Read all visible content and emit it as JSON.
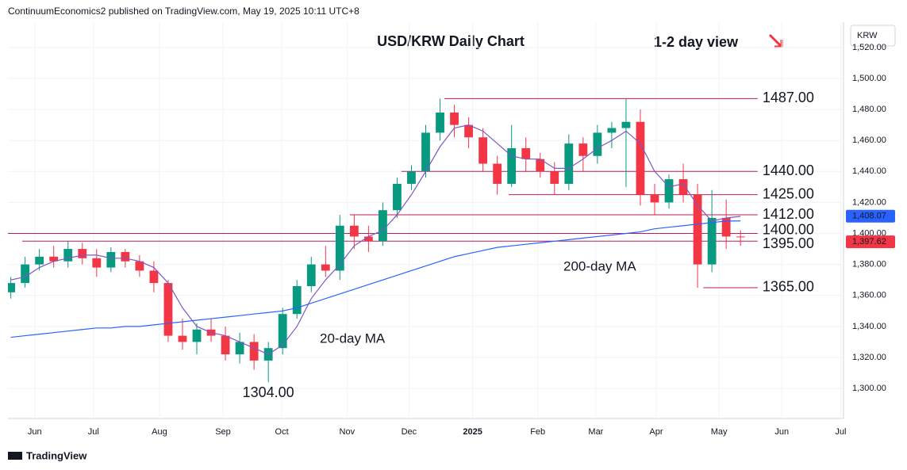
{
  "header": "ContinuumEconomics2 published on TradingView.com, May 19, 2025 10:11 UTC+8",
  "footer": "TradingView",
  "chart_data": {
    "type": "candlestick",
    "title": "USD/KRW Daily Chart",
    "subtitle": "1-2 day view",
    "currency": "KRW",
    "up_color": "#089981",
    "down_color": "#f23645",
    "candles": [
      [
        1362,
        1372,
        1358,
        1368
      ],
      [
        1368,
        1385,
        1365,
        1380
      ],
      [
        1380,
        1390,
        1376,
        1385
      ],
      [
        1385,
        1392,
        1378,
        1382
      ],
      [
        1382,
        1395,
        1378,
        1390
      ],
      [
        1390,
        1394,
        1380,
        1384
      ],
      [
        1384,
        1390,
        1372,
        1378
      ],
      [
        1378,
        1391,
        1375,
        1388
      ],
      [
        1388,
        1390,
        1378,
        1382
      ],
      [
        1382,
        1386,
        1372,
        1376
      ],
      [
        1376,
        1382,
        1362,
        1368
      ],
      [
        1368,
        1370,
        1330,
        1334
      ],
      [
        1334,
        1345,
        1325,
        1330
      ],
      [
        1330,
        1342,
        1322,
        1338
      ],
      [
        1338,
        1345,
        1330,
        1334
      ],
      [
        1334,
        1340,
        1318,
        1322
      ],
      [
        1322,
        1336,
        1316,
        1330
      ],
      [
        1330,
        1335,
        1312,
        1318
      ],
      [
        1318,
        1330,
        1304,
        1326
      ],
      [
        1326,
        1352,
        1322,
        1348
      ],
      [
        1348,
        1370,
        1345,
        1366
      ],
      [
        1366,
        1385,
        1362,
        1380
      ],
      [
        1380,
        1392,
        1372,
        1376
      ],
      [
        1376,
        1412,
        1370,
        1405
      ],
      [
        1405,
        1412,
        1390,
        1398
      ],
      [
        1398,
        1405,
        1388,
        1395
      ],
      [
        1395,
        1420,
        1392,
        1415
      ],
      [
        1415,
        1436,
        1410,
        1432
      ],
      [
        1432,
        1444,
        1428,
        1440
      ],
      [
        1440,
        1470,
        1436,
        1465
      ],
      [
        1465,
        1487,
        1460,
        1478
      ],
      [
        1478,
        1483,
        1462,
        1470
      ],
      [
        1470,
        1475,
        1455,
        1462
      ],
      [
        1462,
        1468,
        1440,
        1445
      ],
      [
        1445,
        1450,
        1425,
        1432
      ],
      [
        1432,
        1470,
        1430,
        1455
      ],
      [
        1455,
        1462,
        1440,
        1448
      ],
      [
        1448,
        1452,
        1436,
        1440
      ],
      [
        1440,
        1446,
        1425,
        1432
      ],
      [
        1432,
        1464,
        1428,
        1458
      ],
      [
        1458,
        1462,
        1440,
        1450
      ],
      [
        1450,
        1470,
        1445,
        1465
      ],
      [
        1465,
        1472,
        1455,
        1468
      ],
      [
        1468,
        1487,
        1430,
        1472
      ],
      [
        1472,
        1480,
        1418,
        1425
      ],
      [
        1425,
        1432,
        1412,
        1420
      ],
      [
        1420,
        1438,
        1416,
        1435
      ],
      [
        1435,
        1445,
        1420,
        1425
      ],
      [
        1425,
        1432,
        1365,
        1380
      ],
      [
        1380,
        1428,
        1375,
        1410
      ],
      [
        1410,
        1422,
        1390,
        1398
      ],
      [
        1398,
        1402,
        1392,
        1397.62
      ]
    ],
    "series": [
      {
        "name": "20-day MA",
        "color": "#7e57c2",
        "values": [
          1370,
          1372,
          1378,
          1382,
          1384,
          1386,
          1386,
          1384,
          1384,
          1382,
          1378,
          1368,
          1352,
          1340,
          1336,
          1334,
          1330,
          1326,
          1322,
          1328,
          1340,
          1358,
          1370,
          1380,
          1392,
          1398,
          1402,
          1412,
          1425,
          1440,
          1456,
          1468,
          1470,
          1466,
          1458,
          1450,
          1448,
          1448,
          1442,
          1442,
          1448,
          1455,
          1460,
          1466,
          1458,
          1440,
          1430,
          1432,
          1418,
          1408,
          1410,
          1411
        ]
      },
      {
        "name": "200-day MA",
        "color": "#2962ff",
        "values": [
          1333,
          1334,
          1335,
          1336,
          1337,
          1338,
          1339,
          1339,
          1340,
          1340,
          1341,
          1342,
          1343,
          1344,
          1345,
          1346,
          1347,
          1348,
          1349,
          1350,
          1352,
          1355,
          1358,
          1361,
          1364,
          1367,
          1370,
          1373,
          1376,
          1379,
          1382,
          1385,
          1387,
          1389,
          1391,
          1392,
          1393,
          1394,
          1395,
          1396,
          1397,
          1398,
          1399,
          1400,
          1401,
          1403,
          1404,
          1405,
          1406,
          1407,
          1408,
          1408.07
        ]
      }
    ],
    "levels": [
      {
        "value": 1487,
        "label": "1487.00",
        "from": 30.3
      },
      {
        "value": 1440,
        "label": "1440.00",
        "from": 27.3
      },
      {
        "value": 1425,
        "label": "1425.00",
        "from": 34.8
      },
      {
        "value": 1412,
        "label": "1412.00",
        "from": 23.7
      },
      {
        "value": 1400,
        "label": "1400.00",
        "from": -0.2
      },
      {
        "value": 1395,
        "label": "1395.00",
        "from": 0.8
      },
      {
        "value": 1365,
        "label": "1365.00",
        "from": 48.4
      }
    ],
    "low_label": {
      "value": 1304,
      "label": "1304.00",
      "index": 18
    },
    "price_badges": [
      {
        "label": "1,408.07",
        "value": 1408.07,
        "color": "#2962ff"
      },
      {
        "label": "1,397.62",
        "value": 1397.62,
        "color": "#f23645"
      }
    ],
    "xlim": [
      -0.2,
      58.2
    ],
    "ylim": [
      1280.6,
      1536.3
    ],
    "yticks": [
      {
        "value": 1300,
        "label": "1,300.00"
      },
      {
        "value": 1320,
        "label": "1,320.00"
      },
      {
        "value": 1340,
        "label": "1,340.00"
      },
      {
        "value": 1360,
        "label": "1,360.00"
      },
      {
        "value": 1380,
        "label": "1,380.00"
      },
      {
        "value": 1400,
        "label": "1,400.00"
      },
      {
        "value": 1420,
        "label": "1,420.00"
      },
      {
        "value": 1440,
        "label": "1,440.00"
      },
      {
        "value": 1460,
        "label": "1,460.00"
      },
      {
        "value": 1480,
        "label": "1,480.00"
      },
      {
        "value": 1500,
        "label": "1,500.00"
      },
      {
        "value": 1520,
        "label": "1,520.00"
      }
    ],
    "xticks": [
      {
        "value": 1.67,
        "label": "Jun"
      },
      {
        "value": 5.78,
        "label": "Jul"
      },
      {
        "value": 10.39,
        "label": "Aug"
      },
      {
        "value": 14.83,
        "label": "Sep"
      },
      {
        "value": 18.94,
        "label": "Oct"
      },
      {
        "value": 23.5,
        "label": "Nov"
      },
      {
        "value": 27.83,
        "label": "Dec"
      },
      {
        "value": 32.28,
        "label": "2025"
      },
      {
        "value": 36.83,
        "label": "Feb"
      },
      {
        "value": 40.89,
        "label": "Mar"
      },
      {
        "value": 45.11,
        "label": "Apr"
      },
      {
        "value": 49.5,
        "label": "May"
      },
      {
        "value": 53.89,
        "label": "Jun"
      },
      {
        "value": 58,
        "label": "Jul"
      }
    ],
    "grid": true
  }
}
